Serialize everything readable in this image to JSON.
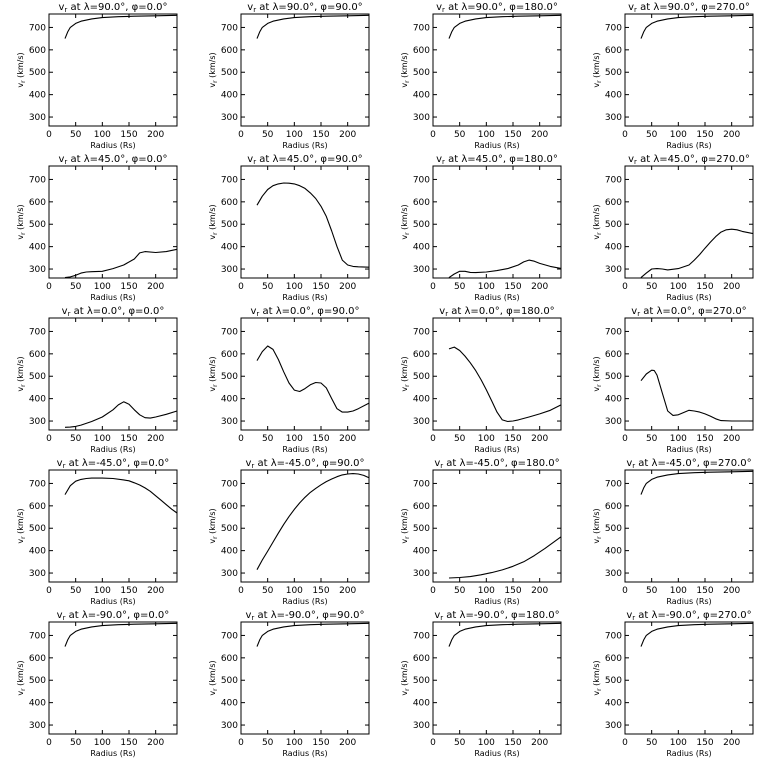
{
  "chart_data": [
    {
      "type": "line",
      "title": "v_r at λ=90.0°, φ=0.0°",
      "title_parts": {
        "lat": "90.0",
        "lon": "0.0"
      },
      "xlabel": "Radius (Rs)",
      "ylabel": "v_r (km/s)",
      "xlim": [
        0,
        240
      ],
      "ylim": [
        260,
        760
      ],
      "xticks": [
        0,
        50,
        100,
        150,
        200
      ],
      "yticks": [
        300,
        400,
        500,
        600,
        700
      ],
      "x": [
        30,
        35,
        40,
        50,
        60,
        80,
        100,
        130,
        160,
        200,
        240
      ],
      "y": [
        650,
        680,
        700,
        718,
        728,
        738,
        744,
        748,
        750,
        752,
        754
      ]
    },
    {
      "type": "line",
      "title": "v_r at λ=90.0°, φ=90.0°",
      "title_parts": {
        "lat": "90.0",
        "lon": "90.0"
      },
      "xlabel": "Radius (Rs)",
      "ylabel": "v_r (km/s)",
      "xlim": [
        0,
        240
      ],
      "ylim": [
        260,
        760
      ],
      "xticks": [
        0,
        50,
        100,
        150,
        200
      ],
      "yticks": [
        300,
        400,
        500,
        600,
        700
      ],
      "x": [
        30,
        35,
        40,
        50,
        60,
        80,
        100,
        130,
        160,
        200,
        240
      ],
      "y": [
        650,
        680,
        700,
        718,
        728,
        738,
        744,
        748,
        750,
        752,
        754
      ]
    },
    {
      "type": "line",
      "title": "v_r at λ=90.0°, φ=180.0°",
      "title_parts": {
        "lat": "90.0",
        "lon": "180.0"
      },
      "xlabel": "Radius (Rs)",
      "ylabel": "v_r (km/s)",
      "xlim": [
        0,
        240
      ],
      "ylim": [
        260,
        760
      ],
      "xticks": [
        0,
        50,
        100,
        150,
        200
      ],
      "yticks": [
        300,
        400,
        500,
        600,
        700
      ],
      "x": [
        30,
        35,
        40,
        50,
        60,
        80,
        100,
        130,
        160,
        200,
        240
      ],
      "y": [
        650,
        680,
        700,
        718,
        728,
        738,
        744,
        748,
        750,
        752,
        754
      ]
    },
    {
      "type": "line",
      "title": "v_r at λ=90.0°, φ=270.0°",
      "title_parts": {
        "lat": "90.0",
        "lon": "270.0"
      },
      "xlabel": "Radius (Rs)",
      "ylabel": "v_r (km/s)",
      "xlim": [
        0,
        240
      ],
      "ylim": [
        260,
        760
      ],
      "xticks": [
        0,
        50,
        100,
        150,
        200
      ],
      "yticks": [
        300,
        400,
        500,
        600,
        700
      ],
      "x": [
        30,
        35,
        40,
        50,
        60,
        80,
        100,
        130,
        160,
        200,
        240
      ],
      "y": [
        650,
        680,
        700,
        718,
        728,
        738,
        744,
        748,
        750,
        752,
        754
      ]
    },
    {
      "type": "line",
      "title": "v_r at λ=45.0°, φ=0.0°",
      "title_parts": {
        "lat": "45.0",
        "lon": "0.0"
      },
      "xlabel": "Radius (Rs)",
      "ylabel": "v_r (km/s)",
      "xlim": [
        0,
        240
      ],
      "ylim": [
        260,
        760
      ],
      "xticks": [
        0,
        50,
        100,
        150,
        200
      ],
      "yticks": [
        300,
        400,
        500,
        600,
        700
      ],
      "x": [
        30,
        40,
        50,
        60,
        70,
        80,
        100,
        120,
        140,
        160,
        170,
        180,
        200,
        220,
        240
      ],
      "y": [
        262,
        265,
        272,
        282,
        287,
        288,
        290,
        302,
        318,
        345,
        372,
        378,
        374,
        378,
        388
      ]
    },
    {
      "type": "line",
      "title": "v_r at λ=45.0°, φ=90.0°",
      "title_parts": {
        "lat": "45.0",
        "lon": "90.0"
      },
      "xlabel": "Radius (Rs)",
      "ylabel": "v_r (km/s)",
      "xlim": [
        0,
        240
      ],
      "ylim": [
        260,
        760
      ],
      "xticks": [
        0,
        50,
        100,
        150,
        200
      ],
      "yticks": [
        300,
        400,
        500,
        600,
        700
      ],
      "x": [
        30,
        40,
        50,
        60,
        70,
        80,
        90,
        100,
        110,
        120,
        130,
        140,
        150,
        160,
        170,
        180,
        190,
        200,
        210,
        220,
        240
      ],
      "y": [
        585,
        625,
        655,
        672,
        680,
        684,
        683,
        680,
        672,
        660,
        640,
        615,
        580,
        535,
        470,
        400,
        340,
        318,
        312,
        310,
        308
      ]
    },
    {
      "type": "line",
      "title": "v_r at λ=45.0°, φ=180.0°",
      "title_parts": {
        "lat": "45.0",
        "lon": "180.0"
      },
      "xlabel": "Radius (Rs)",
      "ylabel": "v_r (km/s)",
      "xlim": [
        0,
        240
      ],
      "ylim": [
        260,
        760
      ],
      "xticks": [
        0,
        50,
        100,
        150,
        200
      ],
      "yticks": [
        300,
        400,
        500,
        600,
        700
      ],
      "x": [
        30,
        40,
        50,
        60,
        70,
        80,
        100,
        120,
        140,
        160,
        170,
        180,
        190,
        200,
        220,
        240
      ],
      "y": [
        262,
        278,
        290,
        290,
        285,
        284,
        287,
        293,
        302,
        318,
        332,
        340,
        335,
        325,
        312,
        303
      ]
    },
    {
      "type": "line",
      "title": "v_r at λ=45.0°, φ=270.0°",
      "title_parts": {
        "lat": "45.0",
        "lon": "270.0"
      },
      "xlabel": "Radius (Rs)",
      "ylabel": "v_r (km/s)",
      "xlim": [
        0,
        240
      ],
      "ylim": [
        260,
        760
      ],
      "xticks": [
        0,
        50,
        100,
        150,
        200
      ],
      "yticks": [
        300,
        400,
        500,
        600,
        700
      ],
      "x": [
        30,
        40,
        50,
        60,
        70,
        80,
        100,
        120,
        130,
        140,
        150,
        160,
        170,
        180,
        190,
        200,
        210,
        220,
        240
      ],
      "y": [
        262,
        282,
        300,
        302,
        300,
        296,
        302,
        318,
        340,
        365,
        393,
        420,
        445,
        465,
        475,
        478,
        475,
        468,
        458
      ]
    },
    {
      "type": "line",
      "title": "v_r at λ=0.0°, φ=0.0°",
      "title_parts": {
        "lat": "0.0",
        "lon": "0.0"
      },
      "xlabel": "Radius (Rs)",
      "ylabel": "v_r (km/s)",
      "xlim": [
        0,
        240
      ],
      "ylim": [
        260,
        760
      ],
      "xticks": [
        0,
        50,
        100,
        150,
        200
      ],
      "yticks": [
        300,
        400,
        500,
        600,
        700
      ],
      "x": [
        30,
        40,
        50,
        60,
        80,
        100,
        120,
        130,
        140,
        150,
        160,
        170,
        180,
        190,
        200,
        220,
        240
      ],
      "y": [
        272,
        273,
        276,
        282,
        298,
        318,
        350,
        372,
        386,
        375,
        350,
        328,
        315,
        313,
        318,
        330,
        345
      ]
    },
    {
      "type": "line",
      "title": "v_r at λ=0.0°, φ=90.0°",
      "title_parts": {
        "lat": "0.0",
        "lon": "90.0"
      },
      "xlabel": "Radius (Rs)",
      "ylabel": "v_r (km/s)",
      "xlim": [
        0,
        240
      ],
      "ylim": [
        260,
        760
      ],
      "xticks": [
        0,
        50,
        100,
        150,
        200
      ],
      "yticks": [
        300,
        400,
        500,
        600,
        700
      ],
      "x": [
        30,
        40,
        50,
        60,
        70,
        80,
        90,
        100,
        110,
        120,
        130,
        140,
        150,
        160,
        170,
        180,
        190,
        200,
        210,
        220,
        240
      ],
      "y": [
        570,
        610,
        635,
        620,
        575,
        520,
        470,
        438,
        432,
        445,
        462,
        472,
        470,
        448,
        400,
        355,
        340,
        340,
        345,
        355,
        380
      ]
    },
    {
      "type": "line",
      "title": "v_r at λ=0.0°, φ=180.0°",
      "title_parts": {
        "lat": "0.0",
        "lon": "180.0"
      },
      "xlabel": "Radius (Rs)",
      "ylabel": "v_r (km/s)",
      "xlim": [
        0,
        240
      ],
      "ylim": [
        260,
        760
      ],
      "xticks": [
        0,
        50,
        100,
        150,
        200
      ],
      "yticks": [
        300,
        400,
        500,
        600,
        700
      ],
      "x": [
        30,
        40,
        50,
        60,
        70,
        80,
        90,
        100,
        110,
        120,
        130,
        140,
        150,
        160,
        180,
        200,
        220,
        240
      ],
      "y": [
        622,
        630,
        615,
        590,
        560,
        525,
        485,
        440,
        390,
        340,
        305,
        298,
        300,
        305,
        318,
        332,
        348,
        372
      ]
    },
    {
      "type": "line",
      "title": "v_r at λ=0.0°, φ=270.0°",
      "title_parts": {
        "lat": "0.0",
        "lon": "270.0"
      },
      "xlabel": "Radius (Rs)",
      "ylabel": "v_r (km/s)",
      "xlim": [
        0,
        240
      ],
      "ylim": [
        260,
        760
      ],
      "xticks": [
        0,
        50,
        100,
        150,
        200
      ],
      "yticks": [
        300,
        400,
        500,
        600,
        700
      ],
      "x": [
        30,
        40,
        50,
        55,
        60,
        70,
        80,
        90,
        100,
        110,
        120,
        130,
        140,
        150,
        160,
        170,
        180,
        200,
        220,
        240
      ],
      "y": [
        480,
        510,
        527,
        525,
        505,
        425,
        345,
        325,
        328,
        338,
        348,
        345,
        340,
        332,
        322,
        310,
        302,
        300,
        300,
        300
      ]
    },
    {
      "type": "line",
      "title": "v_r at λ=-45.0°, φ=0.0°",
      "title_parts": {
        "lat": "-45.0",
        "lon": "0.0"
      },
      "xlabel": "Radius (Rs)",
      "ylabel": "v_r (km/s)",
      "xlim": [
        0,
        240
      ],
      "ylim": [
        260,
        760
      ],
      "xticks": [
        0,
        50,
        100,
        150,
        200
      ],
      "yticks": [
        300,
        400,
        500,
        600,
        700
      ],
      "x": [
        30,
        40,
        50,
        60,
        70,
        80,
        100,
        120,
        140,
        150,
        160,
        170,
        180,
        190,
        200,
        210,
        220,
        230,
        240
      ],
      "y": [
        650,
        690,
        710,
        718,
        722,
        724,
        724,
        722,
        716,
        712,
        703,
        693,
        680,
        665,
        645,
        625,
        605,
        585,
        568
      ]
    },
    {
      "type": "line",
      "title": "v_r at λ=-45.0°, φ=90.0°",
      "title_parts": {
        "lat": "-45.0",
        "lon": "90.0"
      },
      "xlabel": "Radius (Rs)",
      "ylabel": "v_r (km/s)",
      "xlim": [
        0,
        240
      ],
      "ylim": [
        260,
        760
      ],
      "xticks": [
        0,
        50,
        100,
        150,
        200
      ],
      "yticks": [
        300,
        400,
        500,
        600,
        700
      ],
      "x": [
        30,
        40,
        50,
        60,
        70,
        80,
        90,
        100,
        110,
        120,
        130,
        140,
        150,
        160,
        170,
        180,
        190,
        200,
        210,
        220,
        230,
        240
      ],
      "y": [
        315,
        358,
        398,
        438,
        478,
        517,
        552,
        584,
        613,
        638,
        660,
        678,
        694,
        708,
        720,
        730,
        738,
        742,
        744,
        742,
        736,
        725
      ]
    },
    {
      "type": "line",
      "title": "v_r at λ=-45.0°, φ=180.0°",
      "title_parts": {
        "lat": "-45.0",
        "lon": "180.0"
      },
      "xlabel": "Radius (Rs)",
      "ylabel": "v_r (km/s)",
      "xlim": [
        0,
        240
      ],
      "ylim": [
        260,
        760
      ],
      "xticks": [
        0,
        50,
        100,
        150,
        200
      ],
      "yticks": [
        300,
        400,
        500,
        600,
        700
      ],
      "x": [
        30,
        50,
        70,
        90,
        110,
        130,
        150,
        170,
        190,
        210,
        240
      ],
      "y": [
        278,
        280,
        284,
        292,
        302,
        314,
        330,
        350,
        378,
        410,
        462
      ]
    },
    {
      "type": "line",
      "title": "v_r at λ=-45.0°, φ=270.0°",
      "title_parts": {
        "lat": "-45.0",
        "lon": "270.0"
      },
      "xlabel": "Radius (Rs)",
      "ylabel": "v_r (km/s)",
      "xlim": [
        0,
        240
      ],
      "ylim": [
        260,
        760
      ],
      "xticks": [
        0,
        50,
        100,
        150,
        200
      ],
      "yticks": [
        300,
        400,
        500,
        600,
        700
      ],
      "x": [
        30,
        35,
        40,
        50,
        60,
        80,
        100,
        130,
        160,
        200,
        240
      ],
      "y": [
        650,
        680,
        700,
        718,
        728,
        738,
        744,
        748,
        750,
        752,
        754
      ]
    },
    {
      "type": "line",
      "title": "v_r at λ=-90.0°, φ=0.0°",
      "title_parts": {
        "lat": "-90.0",
        "lon": "0.0"
      },
      "xlabel": "Radius (Rs)",
      "ylabel": "v_r (km/s)",
      "xlim": [
        0,
        240
      ],
      "ylim": [
        260,
        760
      ],
      "xticks": [
        0,
        50,
        100,
        150,
        200
      ],
      "yticks": [
        300,
        400,
        500,
        600,
        700
      ],
      "x": [
        30,
        35,
        40,
        50,
        60,
        80,
        100,
        130,
        160,
        200,
        240
      ],
      "y": [
        650,
        680,
        700,
        718,
        728,
        738,
        744,
        748,
        750,
        752,
        754
      ]
    },
    {
      "type": "line",
      "title": "v_r at λ=-90.0°, φ=90.0°",
      "title_parts": {
        "lat": "-90.0",
        "lon": "90.0"
      },
      "xlabel": "Radius (Rs)",
      "ylabel": "v_r (km/s)",
      "xlim": [
        0,
        240
      ],
      "ylim": [
        260,
        760
      ],
      "xticks": [
        0,
        50,
        100,
        150,
        200
      ],
      "yticks": [
        300,
        400,
        500,
        600,
        700
      ],
      "x": [
        30,
        35,
        40,
        50,
        60,
        80,
        100,
        130,
        160,
        200,
        240
      ],
      "y": [
        650,
        680,
        700,
        718,
        728,
        738,
        744,
        748,
        750,
        752,
        754
      ]
    },
    {
      "type": "line",
      "title": "v_r at λ=-90.0°, φ=180.0°",
      "title_parts": {
        "lat": "-90.0",
        "lon": "180.0"
      },
      "xlabel": "Radius (Rs)",
      "ylabel": "v_r (km/s)",
      "xlim": [
        0,
        240
      ],
      "ylim": [
        260,
        760
      ],
      "xticks": [
        0,
        50,
        100,
        150,
        200
      ],
      "yticks": [
        300,
        400,
        500,
        600,
        700
      ],
      "x": [
        30,
        35,
        40,
        50,
        60,
        80,
        100,
        130,
        160,
        200,
        240
      ],
      "y": [
        650,
        680,
        700,
        718,
        728,
        738,
        744,
        748,
        750,
        752,
        754
      ]
    },
    {
      "type": "line",
      "title": "v_r at λ=-90.0°, φ=270.0°",
      "title_parts": {
        "lat": "-90.0",
        "lon": "270.0"
      },
      "xlabel": "Radius (Rs)",
      "ylabel": "v_r (km/s)",
      "xlim": [
        0,
        240
      ],
      "ylim": [
        260,
        760
      ],
      "xticks": [
        0,
        50,
        100,
        150,
        200
      ],
      "yticks": [
        300,
        400,
        500,
        600,
        700
      ],
      "x": [
        30,
        35,
        40,
        50,
        60,
        80,
        100,
        130,
        160,
        200,
        240
      ],
      "y": [
        650,
        680,
        700,
        718,
        728,
        738,
        744,
        748,
        750,
        752,
        754
      ]
    }
  ]
}
